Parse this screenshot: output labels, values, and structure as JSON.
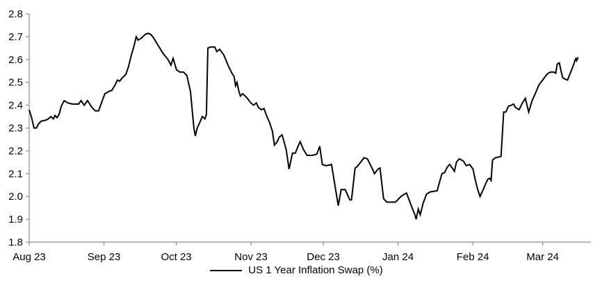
{
  "chart_data": {
    "type": "line",
    "title": "",
    "xlabel": "",
    "ylabel": "",
    "background": "#ffffff",
    "grid": false,
    "axis_color": "#8c8c8c",
    "text_color": "#000000",
    "ylim": [
      1.8,
      2.8
    ],
    "y_tick_labels": [
      "1.8",
      "1.9",
      "2.0",
      "2.1",
      "2.2",
      "2.3",
      "2.4",
      "2.5",
      "2.6",
      "2.7",
      "2.8"
    ],
    "x_domain": [
      0,
      233
    ],
    "x_ticks": [
      {
        "day": 0,
        "label": "Aug 23"
      },
      {
        "day": 31,
        "label": "Sep 23"
      },
      {
        "day": 61,
        "label": "Oct 23"
      },
      {
        "day": 92,
        "label": "Nov 23"
      },
      {
        "day": 122,
        "label": "Dec 23"
      },
      {
        "day": 153,
        "label": "Jan 24"
      },
      {
        "day": 184,
        "label": "Feb 24"
      },
      {
        "day": 213,
        "label": "Mar 24"
      }
    ],
    "legend_position": "bottom-center",
    "series": [
      {
        "name": "US 1 Year Inflation Swap (%)",
        "color": "#000000",
        "line_width": 2,
        "points": [
          [
            0,
            2.38
          ],
          [
            1,
            2.345
          ],
          [
            2,
            2.3
          ],
          [
            3,
            2.3
          ],
          [
            4,
            2.32
          ],
          [
            5,
            2.33
          ],
          [
            7,
            2.335
          ],
          [
            8,
            2.34
          ],
          [
            9,
            2.35
          ],
          [
            10,
            2.34
          ],
          [
            10.7,
            2.355
          ],
          [
            11.5,
            2.345
          ],
          [
            12.4,
            2.36
          ],
          [
            13.3,
            2.395
          ],
          [
            14.5,
            2.42
          ],
          [
            16,
            2.41
          ],
          [
            18,
            2.405
          ],
          [
            20.5,
            2.405
          ],
          [
            21.5,
            2.42
          ],
          [
            22.8,
            2.4
          ],
          [
            24.2,
            2.42
          ],
          [
            26,
            2.39
          ],
          [
            27.4,
            2.375
          ],
          [
            28.8,
            2.375
          ],
          [
            30.3,
            2.42
          ],
          [
            31.4,
            2.45
          ],
          [
            33,
            2.46
          ],
          [
            34.3,
            2.465
          ],
          [
            35.7,
            2.49
          ],
          [
            36.6,
            2.51
          ],
          [
            37.5,
            2.505
          ],
          [
            38.6,
            2.52
          ],
          [
            40.1,
            2.535
          ],
          [
            41.2,
            2.57
          ],
          [
            42.4,
            2.62
          ],
          [
            43.5,
            2.66
          ],
          [
            44.4,
            2.7
          ],
          [
            45.2,
            2.685
          ],
          [
            46.7,
            2.695
          ],
          [
            48.1,
            2.71
          ],
          [
            49.3,
            2.715
          ],
          [
            50.4,
            2.71
          ],
          [
            51.6,
            2.695
          ],
          [
            53,
            2.67
          ],
          [
            53.9,
            2.655
          ],
          [
            55.3,
            2.63
          ],
          [
            56.8,
            2.61
          ],
          [
            57.6,
            2.6
          ],
          [
            58.8,
            2.575
          ],
          [
            59.7,
            2.605
          ],
          [
            61.1,
            2.555
          ],
          [
            62.5,
            2.545
          ],
          [
            64,
            2.545
          ],
          [
            65.4,
            2.53
          ],
          [
            66.9,
            2.46
          ],
          [
            68.3,
            2.3
          ],
          [
            68.9,
            2.265
          ],
          [
            69.7,
            2.3
          ],
          [
            70.6,
            2.32
          ],
          [
            71.8,
            2.35
          ],
          [
            72.9,
            2.34
          ],
          [
            73.5,
            2.36
          ],
          [
            74.1,
            2.65
          ],
          [
            75.2,
            2.655
          ],
          [
            77,
            2.655
          ],
          [
            77.8,
            2.635
          ],
          [
            79,
            2.645
          ],
          [
            80.7,
            2.62
          ],
          [
            82.7,
            2.57
          ],
          [
            84.1,
            2.54
          ],
          [
            85,
            2.525
          ],
          [
            85.6,
            2.485
          ],
          [
            86.2,
            2.5
          ],
          [
            87,
            2.46
          ],
          [
            87.6,
            2.44
          ],
          [
            88.5,
            2.45
          ],
          [
            89.6,
            2.44
          ],
          [
            90.5,
            2.43
          ],
          [
            91.9,
            2.41
          ],
          [
            93.1,
            2.4
          ],
          [
            94.2,
            2.41
          ],
          [
            95.1,
            2.39
          ],
          [
            96.3,
            2.38
          ],
          [
            97.4,
            2.385
          ],
          [
            98.6,
            2.35
          ],
          [
            99.7,
            2.325
          ],
          [
            100.9,
            2.285
          ],
          [
            101.7,
            2.225
          ],
          [
            102.9,
            2.24
          ],
          [
            103.7,
            2.26
          ],
          [
            104.9,
            2.27
          ],
          [
            106.6,
            2.205
          ],
          [
            107.8,
            2.12
          ],
          [
            109.2,
            2.19
          ],
          [
            110.4,
            2.19
          ],
          [
            111.5,
            2.22
          ],
          [
            112.4,
            2.24
          ],
          [
            113.8,
            2.205
          ],
          [
            115.3,
            2.18
          ],
          [
            117.3,
            2.18
          ],
          [
            119.3,
            2.185
          ],
          [
            120.5,
            2.22
          ],
          [
            121.6,
            2.14
          ],
          [
            123.1,
            2.135
          ],
          [
            125.4,
            2.14
          ],
          [
            126.8,
            2.05
          ],
          [
            128.2,
            1.96
          ],
          [
            129.4,
            2.03
          ],
          [
            131.1,
            2.03
          ],
          [
            133,
            1.985
          ],
          [
            133.7,
            1.985
          ],
          [
            135.2,
            2.125
          ],
          [
            136,
            2.13
          ],
          [
            137.5,
            2.15
          ],
          [
            138.9,
            2.17
          ],
          [
            140.3,
            2.165
          ],
          [
            142.4,
            2.12
          ],
          [
            143.2,
            2.1
          ],
          [
            144.7,
            2.12
          ],
          [
            145.5,
            2.125
          ],
          [
            147,
            1.99
          ],
          [
            148.4,
            1.975
          ],
          [
            149.6,
            1.975
          ],
          [
            151.9,
            1.975
          ],
          [
            153.3,
            1.99
          ],
          [
            154.2,
            2.0
          ],
          [
            155.6,
            2.01
          ],
          [
            156.5,
            2.015
          ],
          [
            158.5,
            1.96
          ],
          [
            160,
            1.92
          ],
          [
            160.5,
            1.9
          ],
          [
            161.4,
            1.945
          ],
          [
            162.2,
            1.92
          ],
          [
            163.4,
            1.97
          ],
          [
            164.8,
            2.01
          ],
          [
            166.3,
            2.02
          ],
          [
            169.2,
            2.025
          ],
          [
            170,
            2.055
          ],
          [
            171.2,
            2.1
          ],
          [
            172.3,
            2.105
          ],
          [
            173.5,
            2.13
          ],
          [
            174.4,
            2.14
          ],
          [
            175.5,
            2.125
          ],
          [
            176.4,
            2.11
          ],
          [
            177.2,
            2.15
          ],
          [
            178.4,
            2.165
          ],
          [
            180.1,
            2.155
          ],
          [
            181.3,
            2.135
          ],
          [
            182.7,
            2.14
          ],
          [
            184.1,
            2.12
          ],
          [
            185,
            2.075
          ],
          [
            185.9,
            2.035
          ],
          [
            187,
            2.0
          ],
          [
            188.5,
            2.035
          ],
          [
            189.3,
            2.055
          ],
          [
            190.2,
            2.075
          ],
          [
            191,
            2.08
          ],
          [
            191.6,
            2.07
          ],
          [
            192.2,
            2.16
          ],
          [
            193.4,
            2.17
          ],
          [
            195.7,
            2.175
          ],
          [
            196.8,
            2.37
          ],
          [
            197.7,
            2.37
          ],
          [
            198.8,
            2.395
          ],
          [
            200,
            2.4
          ],
          [
            200.9,
            2.405
          ],
          [
            201.7,
            2.39
          ],
          [
            203.2,
            2.38
          ],
          [
            204.6,
            2.41
          ],
          [
            205.8,
            2.43
          ],
          [
            207.2,
            2.37
          ],
          [
            208.6,
            2.42
          ],
          [
            210.1,
            2.455
          ],
          [
            211.5,
            2.49
          ],
          [
            213,
            2.51
          ],
          [
            214.4,
            2.53
          ],
          [
            215.3,
            2.54
          ],
          [
            216.4,
            2.545
          ],
          [
            217.6,
            2.545
          ],
          [
            218.4,
            2.54
          ],
          [
            219,
            2.58
          ],
          [
            219.9,
            2.585
          ],
          [
            220.5,
            2.555
          ],
          [
            221.3,
            2.52
          ],
          [
            222.2,
            2.515
          ],
          [
            223.3,
            2.51
          ],
          [
            224.8,
            2.55
          ],
          [
            225.9,
            2.58
          ],
          [
            226.5,
            2.6
          ],
          [
            226.8,
            2.605
          ],
          [
            227.1,
            2.595
          ],
          [
            227.7,
            2.61
          ]
        ]
      }
    ]
  },
  "legend": {
    "label": "US 1 Year Inflation Swap (%)"
  }
}
